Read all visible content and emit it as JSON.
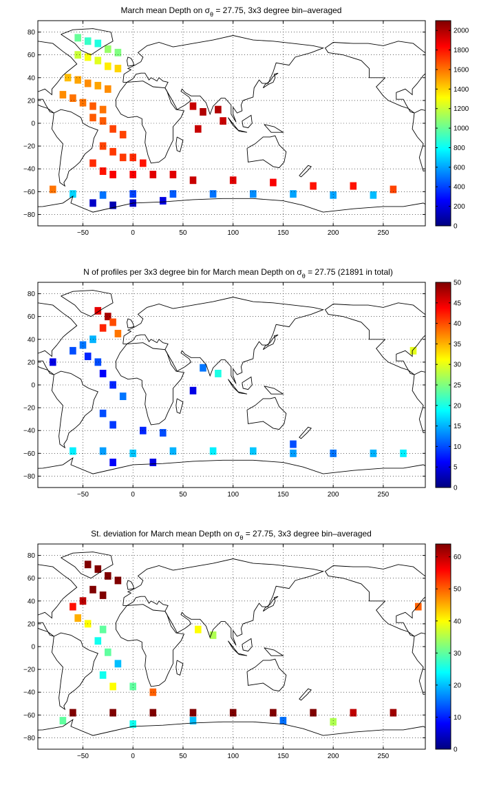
{
  "chart_data": [
    {
      "type": "heatmap",
      "title_main": "March mean Depth on σ",
      "title_sub": "θ",
      "title_tail": " = 27.75, 3x3 degree bin–averaged",
      "xlabel": "",
      "ylabel": "",
      "xlim": [
        -95,
        292
      ],
      "ylim": [
        -90,
        90
      ],
      "x_ticks": [
        -50,
        0,
        50,
        100,
        150,
        200,
        250
      ],
      "y_ticks": [
        -80,
        -60,
        -40,
        -20,
        0,
        20,
        40,
        60,
        80
      ],
      "grid": true,
      "colormap": "jet",
      "colorbar_lim": [
        0,
        2100
      ],
      "colorbar_ticks": [
        0,
        200,
        400,
        600,
        800,
        1000,
        1200,
        1400,
        1600,
        1800,
        2000
      ],
      "units": "",
      "cells": [
        [
          -55,
          75,
          1000
        ],
        [
          -45,
          72,
          900
        ],
        [
          -35,
          70,
          850
        ],
        [
          -25,
          65,
          1100
        ],
        [
          -15,
          62,
          1050
        ],
        [
          -55,
          60,
          1200
        ],
        [
          -45,
          58,
          1300
        ],
        [
          -35,
          55,
          1250
        ],
        [
          -25,
          50,
          1350
        ],
        [
          -15,
          48,
          1400
        ],
        [
          -65,
          40,
          1450
        ],
        [
          -55,
          38,
          1500
        ],
        [
          -45,
          35,
          1550
        ],
        [
          -35,
          33,
          1500
        ],
        [
          -25,
          30,
          1550
        ],
        [
          -70,
          25,
          1550
        ],
        [
          -60,
          22,
          1600
        ],
        [
          -50,
          18,
          1600
        ],
        [
          -40,
          15,
          1650
        ],
        [
          -30,
          12,
          1600
        ],
        [
          -40,
          5,
          1650
        ],
        [
          -30,
          2,
          1650
        ],
        [
          -20,
          -5,
          1700
        ],
        [
          -10,
          -10,
          1700
        ],
        [
          -30,
          -20,
          1700
        ],
        [
          -20,
          -25,
          1720
        ],
        [
          -10,
          -30,
          1720
        ],
        [
          0,
          -30,
          1750
        ],
        [
          10,
          -35,
          1800
        ],
        [
          -40,
          -35,
          1750
        ],
        [
          -30,
          -42,
          1800
        ],
        [
          -20,
          -45,
          1850
        ],
        [
          0,
          -45,
          1850
        ],
        [
          20,
          -45,
          1900
        ],
        [
          40,
          -45,
          1900
        ],
        [
          60,
          15,
          1950
        ],
        [
          70,
          10,
          2000
        ],
        [
          85,
          12,
          2000
        ],
        [
          90,
          2,
          1950
        ],
        [
          65,
          -5,
          1950
        ],
        [
          60,
          -50,
          1950
        ],
        [
          100,
          -50,
          1900
        ],
        [
          140,
          -52,
          1850
        ],
        [
          180,
          -55,
          1800
        ],
        [
          220,
          -55,
          1800
        ],
        [
          260,
          -58,
          1700
        ],
        [
          -80,
          -58,
          1600
        ],
        [
          -60,
          -62,
          700
        ],
        [
          -30,
          -63,
          500
        ],
        [
          0,
          -62,
          400
        ],
        [
          40,
          -62,
          450
        ],
        [
          80,
          -62,
          500
        ],
        [
          120,
          -62,
          550
        ],
        [
          160,
          -62,
          600
        ],
        [
          200,
          -63,
          600
        ],
        [
          240,
          -63,
          650
        ],
        [
          -40,
          -70,
          150
        ],
        [
          -20,
          -72,
          100
        ],
        [
          0,
          -70,
          150
        ],
        [
          30,
          -68,
          200
        ]
      ]
    },
    {
      "type": "heatmap",
      "title_main": "N of profiles per 3x3 degree bin for March mean Depth on σ",
      "title_sub": "θ",
      "title_tail": " = 27.75 (21891 in total)",
      "xlabel": "",
      "ylabel": "",
      "xlim": [
        -95,
        292
      ],
      "ylim": [
        -90,
        90
      ],
      "x_ticks": [
        -50,
        0,
        50,
        100,
        150,
        200,
        250
      ],
      "y_ticks": [
        -80,
        -60,
        -40,
        -20,
        0,
        20,
        40,
        60,
        80
      ],
      "grid": true,
      "colormap": "jet",
      "colorbar_lim": [
        0,
        50
      ],
      "colorbar_ticks": [
        0,
        5,
        10,
        15,
        20,
        25,
        30,
        35,
        40,
        45,
        50
      ],
      "units": "",
      "cells": [
        [
          -35,
          65,
          45
        ],
        [
          -25,
          60,
          48
        ],
        [
          -20,
          55,
          40
        ],
        [
          -30,
          50,
          42
        ],
        [
          -15,
          45,
          38
        ],
        [
          -40,
          40,
          15
        ],
        [
          -50,
          35,
          12
        ],
        [
          -60,
          30,
          10
        ],
        [
          -45,
          25,
          8
        ],
        [
          -35,
          20,
          10
        ],
        [
          -30,
          10,
          6
        ],
        [
          -20,
          0,
          8
        ],
        [
          -10,
          -10,
          12
        ],
        [
          -30,
          -25,
          10
        ],
        [
          -20,
          -35,
          9
        ],
        [
          10,
          -40,
          8
        ],
        [
          30,
          -42,
          10
        ],
        [
          70,
          15,
          12
        ],
        [
          85,
          10,
          20
        ],
        [
          60,
          -5,
          5
        ],
        [
          -60,
          -58,
          18
        ],
        [
          -30,
          -58,
          14
        ],
        [
          0,
          -60,
          16
        ],
        [
          40,
          -58,
          15
        ],
        [
          80,
          -58,
          18
        ],
        [
          120,
          -58,
          16
        ],
        [
          160,
          -60,
          14
        ],
        [
          200,
          -60,
          12
        ],
        [
          240,
          -60,
          15
        ],
        [
          270,
          -60,
          18
        ],
        [
          -20,
          -68,
          6
        ],
        [
          20,
          -68,
          5
        ],
        [
          160,
          -52,
          10
        ],
        [
          -80,
          20,
          5
        ],
        [
          280,
          30,
          30
        ]
      ]
    },
    {
      "type": "heatmap",
      "title_main": "St. deviation for March mean Depth on σ",
      "title_sub": "θ",
      "title_tail": " = 27.75, 3x3 degree bin–averaged",
      "xlabel": "",
      "ylabel": "",
      "xlim": [
        -95,
        292
      ],
      "ylim": [
        -90,
        90
      ],
      "x_ticks": [
        -50,
        0,
        50,
        100,
        150,
        200,
        250
      ],
      "y_ticks": [
        -80,
        -60,
        -40,
        -20,
        0,
        20,
        40,
        60,
        80
      ],
      "grid": true,
      "colormap": "jet",
      "colorbar_lim": [
        0,
        64
      ],
      "colorbar_ticks": [
        0,
        10,
        20,
        30,
        40,
        50,
        60
      ],
      "units": "",
      "cells": [
        [
          -45,
          72,
          64
        ],
        [
          -35,
          68,
          64
        ],
        [
          -25,
          62,
          64
        ],
        [
          -15,
          58,
          64
        ],
        [
          -40,
          50,
          64
        ],
        [
          -30,
          45,
          64
        ],
        [
          -50,
          40,
          60
        ],
        [
          -60,
          35,
          55
        ],
        [
          -55,
          25,
          45
        ],
        [
          -45,
          20,
          40
        ],
        [
          -30,
          15,
          30
        ],
        [
          -35,
          5,
          25
        ],
        [
          -25,
          -5,
          30
        ],
        [
          -15,
          -15,
          20
        ],
        [
          -30,
          -25,
          25
        ],
        [
          -20,
          -35,
          40
        ],
        [
          0,
          -35,
          30
        ],
        [
          20,
          -40,
          50
        ],
        [
          65,
          15,
          40
        ],
        [
          80,
          10,
          35
        ],
        [
          -60,
          -58,
          64
        ],
        [
          -20,
          -58,
          64
        ],
        [
          20,
          -58,
          64
        ],
        [
          60,
          -58,
          64
        ],
        [
          100,
          -58,
          64
        ],
        [
          140,
          -58,
          64
        ],
        [
          180,
          -58,
          64
        ],
        [
          220,
          -58,
          60
        ],
        [
          260,
          -58,
          62
        ],
        [
          -70,
          -65,
          30
        ],
        [
          0,
          -68,
          25
        ],
        [
          60,
          -65,
          20
        ],
        [
          150,
          -65,
          15
        ],
        [
          200,
          -66,
          35
        ],
        [
          285,
          35,
          50
        ]
      ]
    }
  ]
}
